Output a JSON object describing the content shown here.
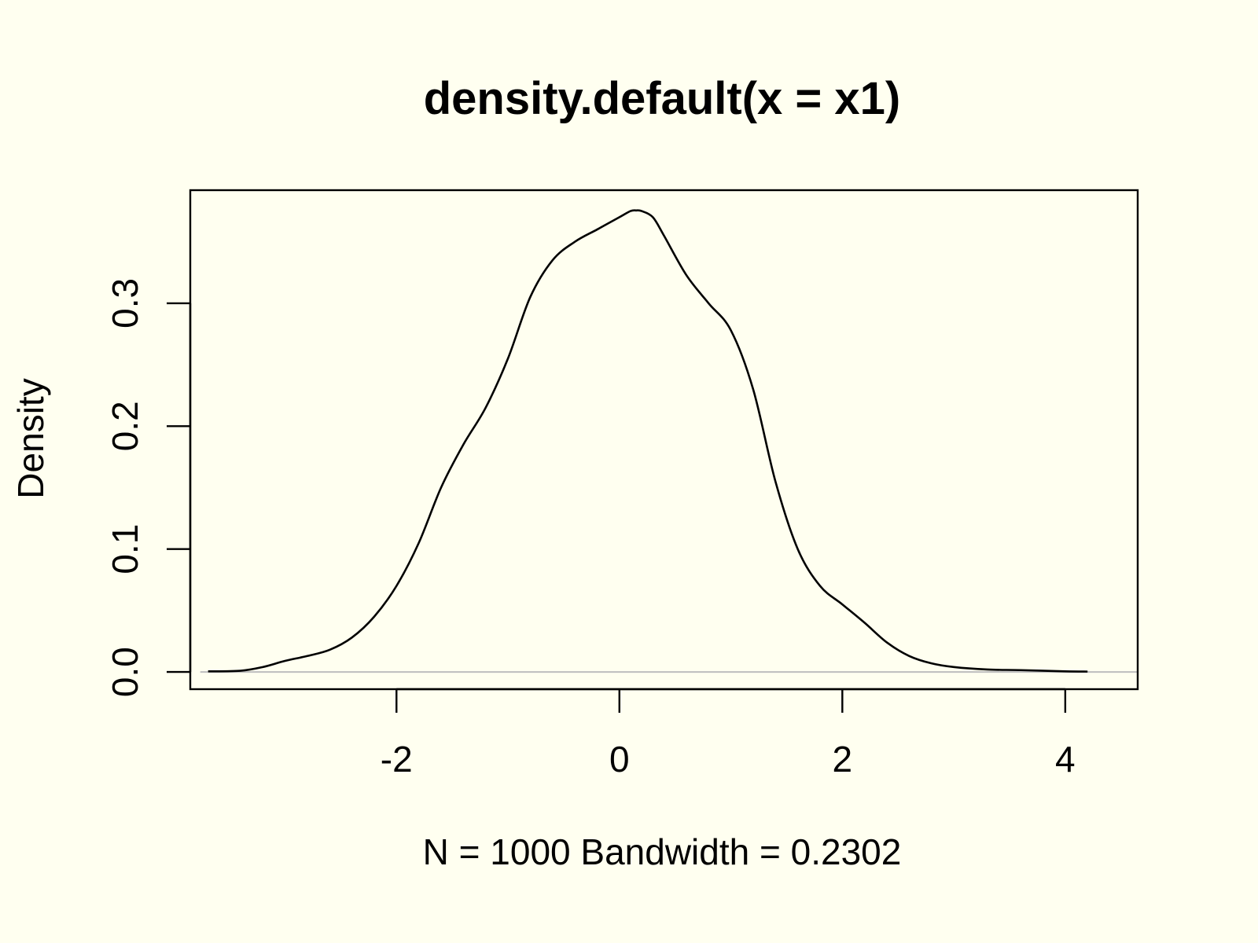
{
  "chart_data": {
    "type": "line",
    "title": "density.default(x = x1)",
    "xlabel": "N = 1000   Bandwidth = 0.2302",
    "ylabel": "Density",
    "xlim": [
      -3.85,
      4.65
    ],
    "ylim": [
      -0.014,
      0.392
    ],
    "x_ticks": [
      -2,
      0,
      2,
      4
    ],
    "x_tick_labels": [
      "-2",
      "0",
      "2",
      "4"
    ],
    "y_ticks": [
      0.0,
      0.1,
      0.2,
      0.3
    ],
    "y_tick_labels": [
      "0.0",
      "0.1",
      "0.2",
      "0.3"
    ],
    "grid": false,
    "baseline": 0,
    "colors": {
      "background": "#FFFFF0",
      "line": "#000000",
      "baseline": "#BEBEBE"
    },
    "series": [
      {
        "x": [
          -3.69,
          -3.4,
          -3.2,
          -3.0,
          -2.8,
          -2.6,
          -2.4,
          -2.2,
          -2.0,
          -1.8,
          -1.6,
          -1.4,
          -1.2,
          -1.0,
          -0.8,
          -0.6,
          -0.4,
          -0.2,
          0.0,
          0.1,
          0.15,
          0.2,
          0.3,
          0.4,
          0.6,
          0.8,
          1.0,
          1.2,
          1.4,
          1.6,
          1.8,
          2.0,
          2.2,
          2.4,
          2.6,
          2.8,
          3.0,
          3.3,
          3.6,
          4.0,
          4.2
        ],
        "y": [
          0.0005,
          0.001,
          0.004,
          0.009,
          0.013,
          0.018,
          0.028,
          0.045,
          0.07,
          0.105,
          0.15,
          0.185,
          0.215,
          0.255,
          0.305,
          0.335,
          0.35,
          0.36,
          0.37,
          0.375,
          0.3755,
          0.375,
          0.37,
          0.355,
          0.323,
          0.3,
          0.278,
          0.23,
          0.155,
          0.1,
          0.07,
          0.055,
          0.04,
          0.024,
          0.013,
          0.007,
          0.004,
          0.002,
          0.0015,
          0.0005,
          0.0003
        ]
      }
    ]
  }
}
